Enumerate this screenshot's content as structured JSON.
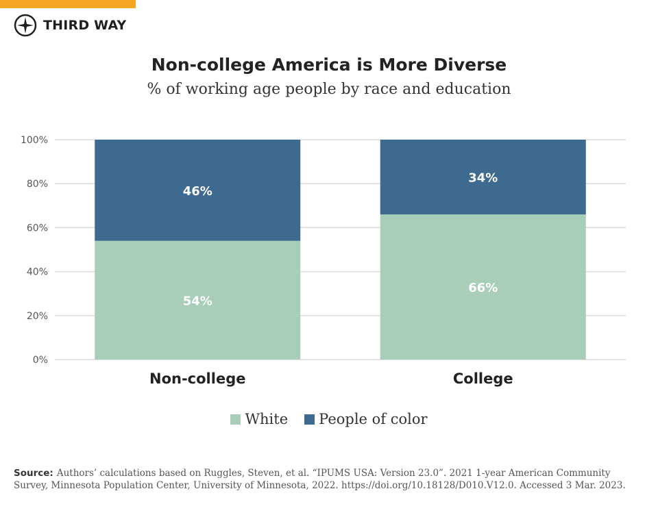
{
  "brand": {
    "name": "THIRD WAY"
  },
  "colors": {
    "accent_bar": "#f5a623",
    "white_series": "#a8cdb8",
    "poc_series": "#3e6a8f"
  },
  "chart_data": {
    "type": "bar",
    "stacked": true,
    "title": "Non-college America is More Diverse",
    "subtitle": "% of working age people by race and education",
    "categories": [
      "Non-college",
      "College"
    ],
    "series": [
      {
        "name": "White",
        "values": [
          54,
          66
        ],
        "labels": [
          "54%",
          "66%"
        ],
        "color": "#a8cdb8"
      },
      {
        "name": "People of color",
        "values": [
          46,
          34
        ],
        "labels": [
          "46%",
          "34%"
        ],
        "color": "#3e6a8f"
      }
    ],
    "ylim": [
      0,
      100
    ],
    "yticks": [
      "0%",
      "20%",
      "40%",
      "60%",
      "80%",
      "100%"
    ],
    "grid": true,
    "legend": "bottom-center"
  },
  "source": {
    "label": "Source:",
    "text": "Authors’ calculations based on Ruggles, Steven, et al. “IPUMS USA: Version 23.0”. 2021 1-year American Community Survey, Minnesota Population Center, University of Minnesota, 2022. https://doi.org/10.18128/D010.V12.0. Accessed 3 Mar. 2023."
  }
}
